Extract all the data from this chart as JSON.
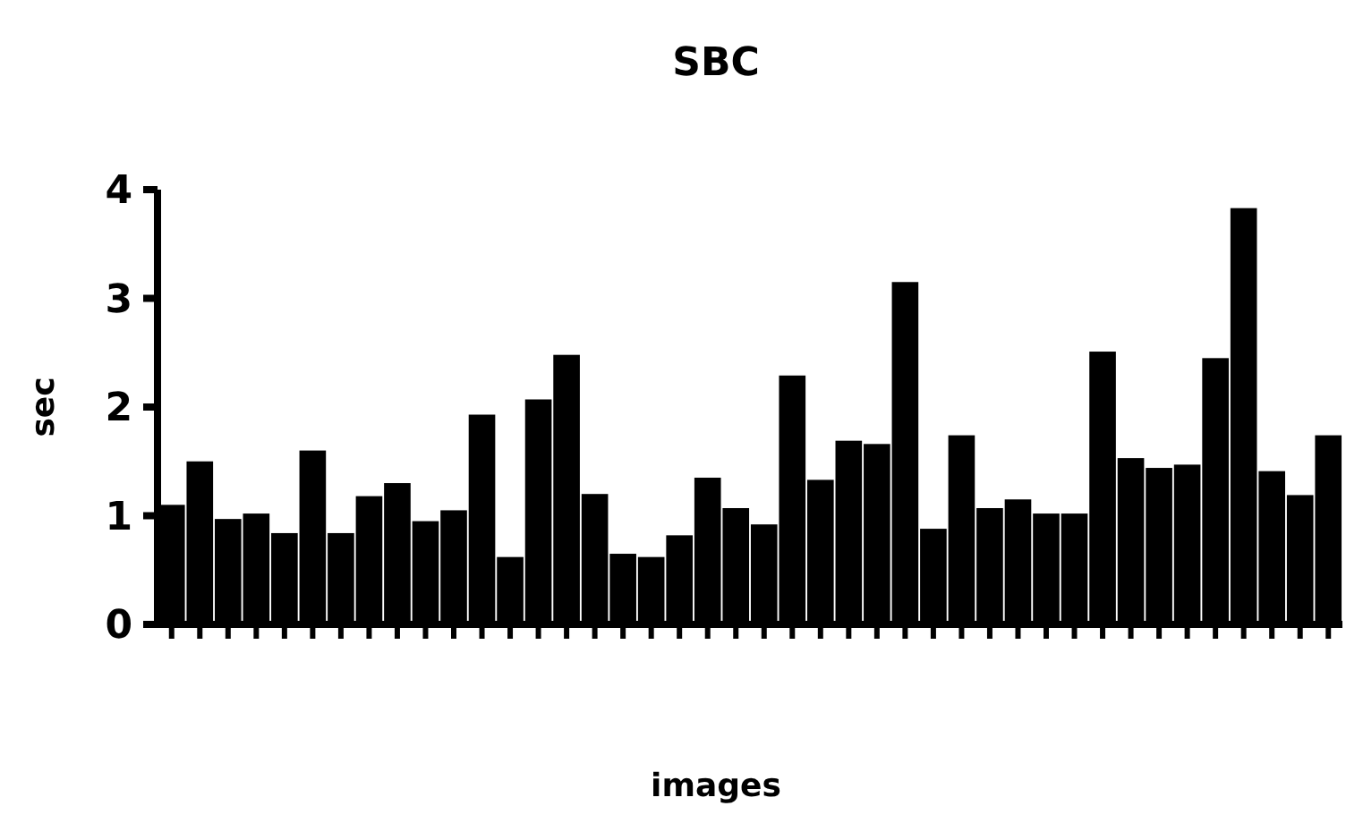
{
  "chart_data": {
    "type": "bar",
    "title": "SBC",
    "xlabel": "images",
    "ylabel": "sec",
    "categories": [
      null,
      null,
      null,
      null,
      null,
      null,
      null,
      null,
      null,
      null,
      null,
      null,
      null,
      null,
      null,
      null,
      null,
      null,
      null,
      null,
      null,
      null,
      null,
      null,
      null,
      null,
      null,
      null,
      null,
      null,
      null,
      null,
      null,
      null,
      null,
      null,
      null,
      null,
      null,
      null,
      null,
      null
    ],
    "values": [
      1.1,
      1.5,
      0.97,
      1.02,
      0.84,
      1.6,
      0.84,
      1.18,
      1.3,
      0.95,
      1.05,
      1.93,
      0.62,
      2.07,
      2.48,
      1.2,
      0.65,
      0.62,
      0.82,
      1.35,
      1.07,
      0.92,
      2.29,
      1.33,
      1.69,
      1.66,
      3.15,
      0.88,
      1.74,
      1.07,
      1.15,
      1.02,
      1.02,
      2.51,
      1.53,
      1.44,
      1.47,
      2.45,
      3.83,
      1.41,
      1.19,
      1.74
    ],
    "color": "#000000",
    "ylim": [
      0,
      4
    ],
    "yticks": [
      0,
      1,
      2,
      3,
      4
    ],
    "grid": false
  }
}
